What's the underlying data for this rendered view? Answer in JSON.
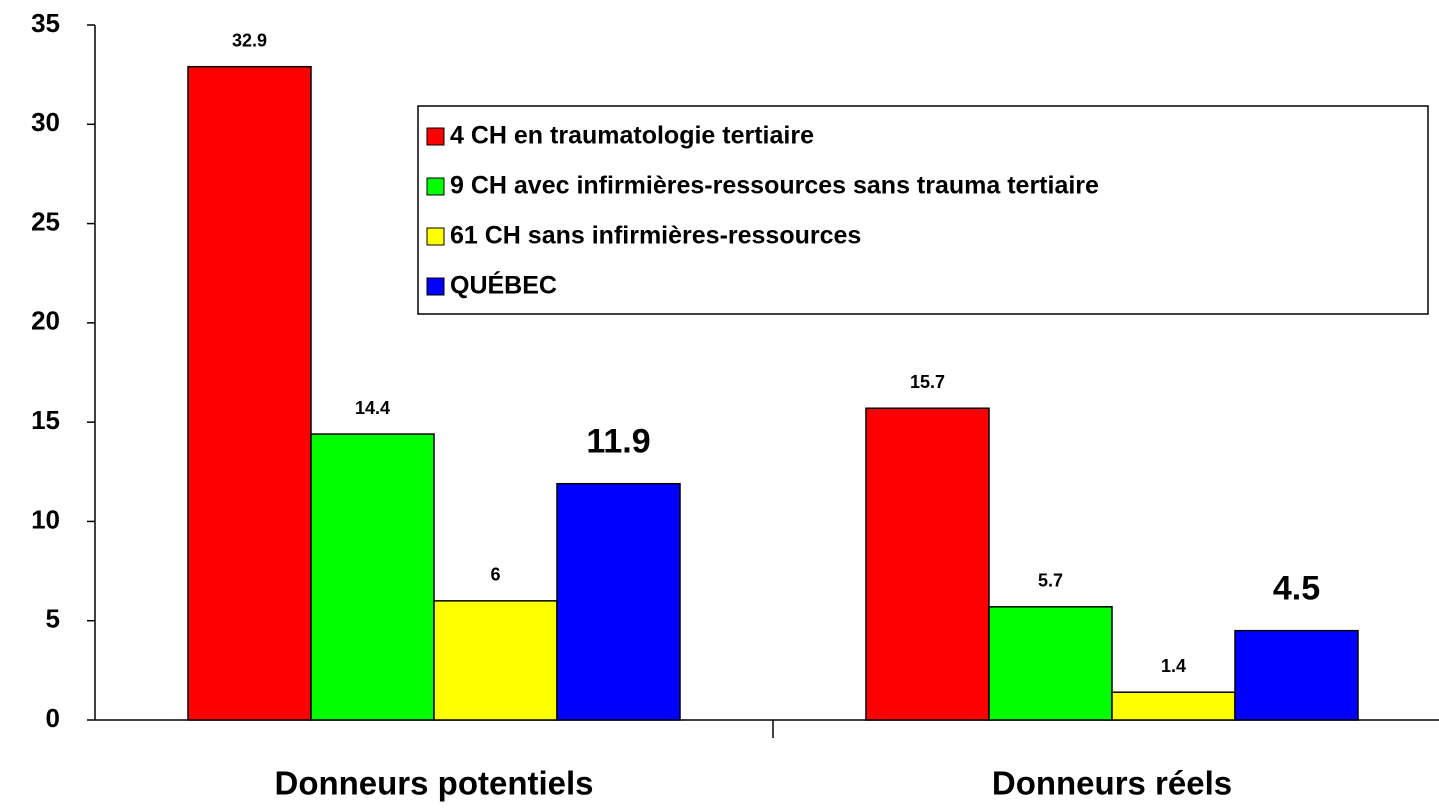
{
  "chart_data": {
    "type": "bar",
    "categories": [
      "Donneurs potentiels",
      "Donneurs réels"
    ],
    "series": [
      {
        "name": "4 CH en traumatologie tertiaire",
        "color": "#ff0000",
        "values": [
          32.9,
          15.7
        ]
      },
      {
        "name": "9 CH avec infirmières-ressources sans trauma tertiaire",
        "color": "#00ff00",
        "values": [
          14.4,
          5.7
        ]
      },
      {
        "name": "61 CH sans infirmières-ressources",
        "color": "#ffff00",
        "values": [
          6,
          1.4
        ]
      },
      {
        "name": "QUÉBEC",
        "color": "#0000ff",
        "values": [
          11.9,
          4.5
        ]
      }
    ],
    "ylim": [
      0,
      35
    ],
    "yticks": [
      0,
      5,
      10,
      15,
      20,
      25,
      30,
      35
    ],
    "grid": false,
    "legend": "top-right"
  }
}
